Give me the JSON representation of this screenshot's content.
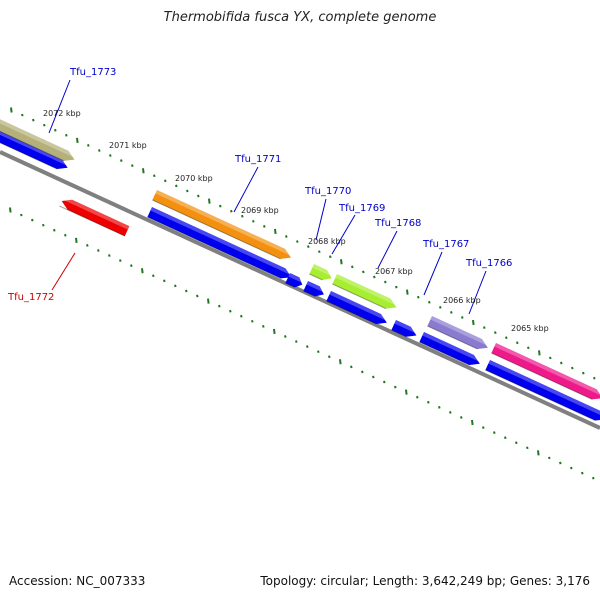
{
  "title": "Thermobifida fusca YX, complete genome",
  "footer": {
    "accession": "Accession: NC_007333",
    "summary": "Topology: circular; Length: 3,642,249 bp; Genes: 3,176"
  },
  "colors": {
    "forward_label": "#0000cc",
    "reverse_label": "#cc0000",
    "backbone": "#808080",
    "tick": "#227722",
    "cds": "#0000ee"
  },
  "kbp_labels": [
    "2072 kbp",
    "2071 kbp",
    "2070 kbp",
    "2069 kbp",
    "2068 kbp",
    "2067 kbp",
    "2066 kbp",
    "2065 kbp"
  ],
  "genes": [
    {
      "name": "Tfu_1773",
      "strand": "forward",
      "color": "#b5b07a"
    },
    {
      "name": "Tfu_1772",
      "strand": "reverse",
      "color": "#ee0000"
    },
    {
      "name": "Tfu_1771",
      "strand": "forward",
      "color": "#f39010"
    },
    {
      "name": "Tfu_1770",
      "strand": "forward",
      "color": "#a8ee30"
    },
    {
      "name": "Tfu_1769",
      "strand": "forward",
      "color": "#a8ee30"
    },
    {
      "name": "Tfu_1768",
      "strand": "forward",
      "color": "#a8ee30"
    },
    {
      "name": "Tfu_1767",
      "strand": "forward",
      "color": "#8a7ad0"
    },
    {
      "name": "Tfu_1766",
      "strand": "forward",
      "color": "#ee1a8a"
    }
  ]
}
